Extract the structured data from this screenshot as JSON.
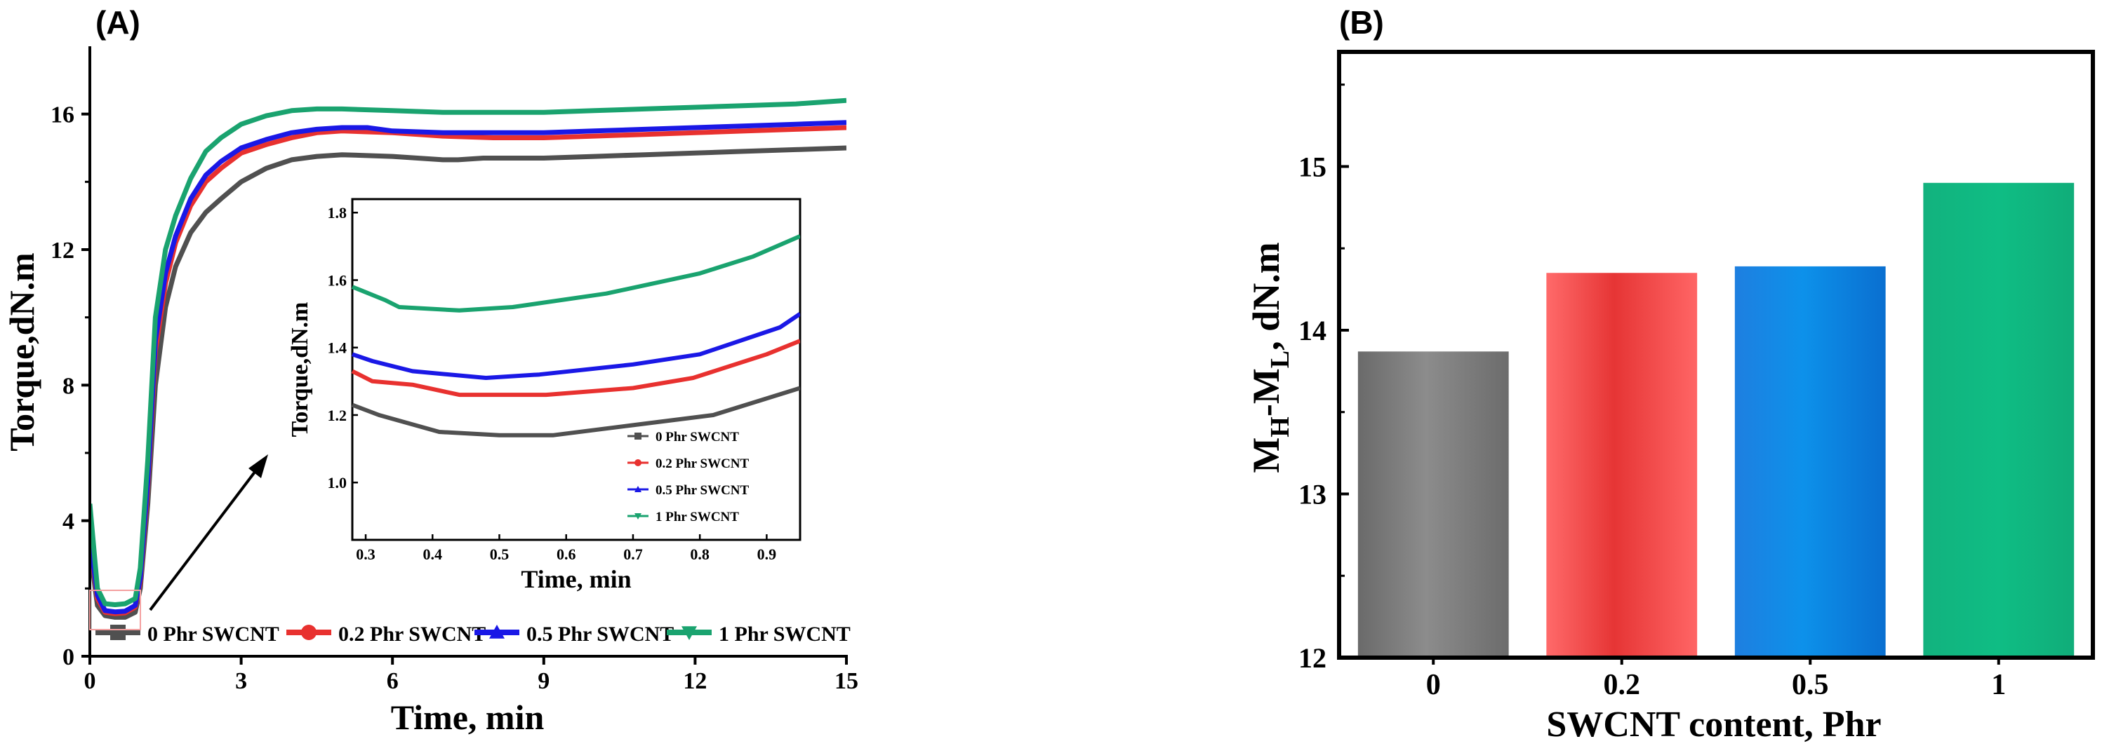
{
  "chart_data": [
    {
      "panel_label": "(A)",
      "type": "line",
      "xlabel": "Time, min",
      "ylabel": "Torque,dN.m",
      "xlim": [
        0,
        15
      ],
      "ylim": [
        0,
        18
      ],
      "xticks": [
        0,
        3,
        6,
        9,
        12,
        15
      ],
      "xtick_labels": [
        "0",
        "3",
        "6",
        "9",
        "12",
        "15"
      ],
      "yticks": [
        0,
        4,
        8,
        12,
        16
      ],
      "ytick_labels": [
        "0",
        "4",
        "8",
        "12",
        "16"
      ],
      "legend_position": "bottom",
      "series": [
        {
          "name": "0  Phr SWCNT",
          "color": "#505050",
          "x": [
            0,
            0.15,
            0.3,
            0.5,
            0.7,
            0.9,
            1.0,
            1.15,
            1.3,
            1.5,
            1.7,
            2.0,
            2.3,
            2.6,
            3.0,
            3.5,
            4.0,
            4.5,
            5.0,
            6.0,
            7.0,
            7.3,
            7.8,
            9.0,
            10.0,
            11.0,
            12.0,
            13.0,
            14.0,
            15.0
          ],
          "y": [
            3.2,
            1.5,
            1.2,
            1.15,
            1.15,
            1.3,
            2.0,
            4.5,
            8.0,
            10.3,
            11.5,
            12.5,
            13.1,
            13.5,
            14.0,
            14.4,
            14.65,
            14.75,
            14.8,
            14.75,
            14.65,
            14.65,
            14.7,
            14.7,
            14.75,
            14.8,
            14.85,
            14.9,
            14.95,
            15.0
          ]
        },
        {
          "name": "0.2 Phr SWCNT",
          "color": "#e8312f",
          "x": [
            0,
            0.15,
            0.3,
            0.5,
            0.7,
            0.9,
            1.0,
            1.15,
            1.3,
            1.5,
            1.7,
            2.0,
            2.3,
            2.6,
            3.0,
            3.5,
            4.0,
            4.5,
            5.0,
            6.0,
            7.0,
            8.0,
            9.0,
            10.0,
            11.0,
            12.0,
            13.0,
            14.0,
            15.0
          ],
          "y": [
            3.4,
            1.7,
            1.3,
            1.26,
            1.28,
            1.45,
            2.2,
            5.0,
            9.0,
            11.0,
            12.2,
            13.3,
            14.0,
            14.4,
            14.85,
            15.1,
            15.3,
            15.45,
            15.5,
            15.45,
            15.35,
            15.3,
            15.3,
            15.35,
            15.4,
            15.45,
            15.5,
            15.55,
            15.6
          ]
        },
        {
          "name": "0.5 Phr SWCNT",
          "color": "#1a18e6",
          "x": [
            0,
            0.15,
            0.3,
            0.5,
            0.7,
            0.9,
            1.0,
            1.15,
            1.3,
            1.5,
            1.7,
            2.0,
            2.3,
            2.6,
            3.0,
            3.5,
            4.0,
            4.5,
            5.0,
            5.5,
            6.0,
            7.0,
            8.0,
            9.0,
            10.0,
            11.0,
            12.0,
            13.0,
            14.0,
            15.0
          ],
          "y": [
            3.5,
            1.8,
            1.35,
            1.31,
            1.33,
            1.5,
            2.3,
            5.2,
            9.3,
            11.3,
            12.4,
            13.5,
            14.2,
            14.6,
            15.0,
            15.25,
            15.45,
            15.55,
            15.6,
            15.6,
            15.5,
            15.45,
            15.45,
            15.45,
            15.5,
            15.55,
            15.6,
            15.65,
            15.7,
            15.75
          ]
        },
        {
          "name": "1  Phr SWCNT",
          "color": "#1aa36f",
          "x": [
            0,
            0.15,
            0.3,
            0.5,
            0.7,
            0.9,
            1.0,
            1.15,
            1.3,
            1.5,
            1.7,
            2.0,
            2.3,
            2.6,
            3.0,
            3.5,
            4.0,
            4.5,
            5.0,
            6.0,
            7.0,
            8.0,
            9.0,
            10.0,
            11.0,
            12.0,
            13.0,
            14.0,
            15.0
          ],
          "y": [
            4.5,
            2.0,
            1.55,
            1.52,
            1.55,
            1.7,
            2.6,
            5.8,
            10.0,
            12.0,
            13.0,
            14.1,
            14.9,
            15.3,
            15.7,
            15.95,
            16.1,
            16.15,
            16.15,
            16.1,
            16.05,
            16.05,
            16.05,
            16.1,
            16.15,
            16.2,
            16.25,
            16.3,
            16.4
          ]
        }
      ],
      "inset": {
        "xlabel": "Time, min",
        "ylabel": "Torque,dN.m",
        "xlim": [
          0.28,
          0.95
        ],
        "ylim": [
          0.83,
          1.84
        ],
        "xticks": [
          0.3,
          0.4,
          0.5,
          0.6,
          0.7,
          0.8,
          0.9
        ],
        "xtick_labels": [
          "0.3",
          "0.4",
          "0.5",
          "0.6",
          "0.7",
          "0.8",
          "0.9"
        ],
        "yticks": [
          1.0,
          1.2,
          1.4,
          1.6,
          1.8
        ],
        "ytick_labels": [
          "1.0",
          "1.2",
          "1.4",
          "1.6",
          "1.8"
        ],
        "legend_position": "bottom-right",
        "series": [
          {
            "name": "0  Phr SWCNT",
            "color": "#505050",
            "x": [
              0.28,
              0.32,
              0.41,
              0.5,
              0.58,
              0.7,
              0.82,
              0.95
            ],
            "y": [
              1.23,
              1.2,
              1.15,
              1.14,
              1.14,
              1.17,
              1.2,
              1.28
            ]
          },
          {
            "name": "0.2 Phr SWCNT",
            "color": "#e8312f",
            "x": [
              0.28,
              0.31,
              0.37,
              0.44,
              0.57,
              0.7,
              0.79,
              0.9,
              0.95
            ],
            "y": [
              1.33,
              1.3,
              1.29,
              1.26,
              1.26,
              1.28,
              1.31,
              1.38,
              1.42
            ]
          },
          {
            "name": "0.5 Phr SWCNT",
            "color": "#1a18e6",
            "x": [
              0.28,
              0.31,
              0.37,
              0.48,
              0.56,
              0.7,
              0.8,
              0.92,
              0.95
            ],
            "y": [
              1.38,
              1.36,
              1.33,
              1.31,
              1.32,
              1.35,
              1.38,
              1.46,
              1.5
            ]
          },
          {
            "name": "1  Phr SWCNT",
            "color": "#1aa36f",
            "x": [
              0.28,
              0.33,
              0.35,
              0.44,
              0.52,
              0.66,
              0.8,
              0.88,
              0.95
            ],
            "y": [
              1.58,
              1.54,
              1.52,
              1.51,
              1.52,
              1.56,
              1.62,
              1.67,
              1.73
            ]
          }
        ]
      }
    },
    {
      "panel_label": "(B)",
      "type": "bar",
      "xlabel": "SWCNT content, Phr",
      "ylabel_main": "M",
      "ylabel_sub_h": "H",
      "ylabel_dash": "-M",
      "ylabel_sub_l": "L",
      "ylabel_tail": ", dN.m",
      "categories": [
        "0",
        "0.2",
        "0.5",
        "1"
      ],
      "values": [
        13.87,
        14.35,
        14.39,
        14.9
      ],
      "colors": [
        "#707070",
        "#f04444",
        "#1178d8",
        "#0fb07a"
      ],
      "ylim": [
        12,
        15.7
      ],
      "yticks": [
        12,
        13,
        14,
        15
      ],
      "ytick_labels": [
        "12",
        "13",
        "14",
        "15"
      ]
    }
  ]
}
